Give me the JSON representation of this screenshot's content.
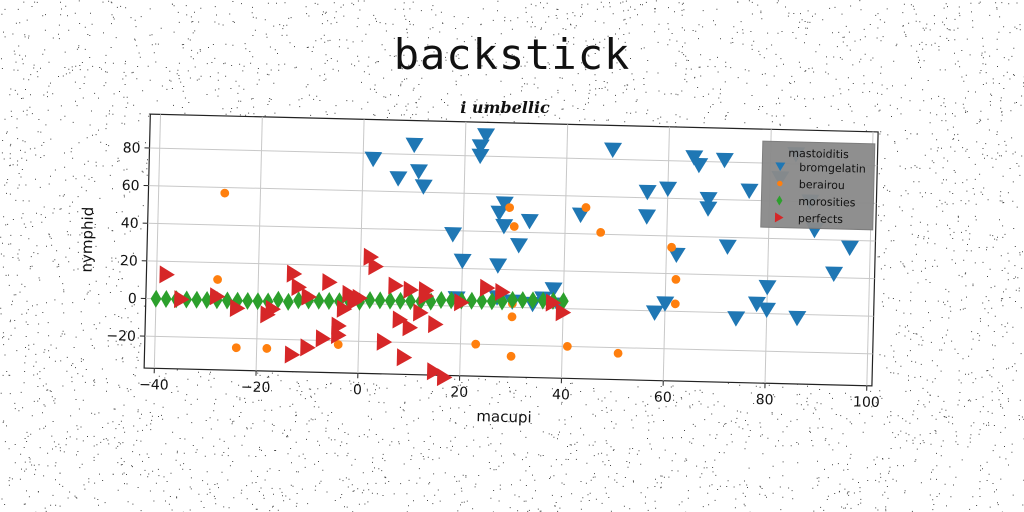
{
  "title": "backstick",
  "chart_data": {
    "type": "scatter",
    "subtitle": "i umbellic",
    "xlabel": "macupi",
    "ylabel": "nymphid",
    "xlim": [
      -42,
      101
    ],
    "ylim": [
      -37,
      98
    ],
    "xticks": [
      -40,
      -20,
      0,
      20,
      40,
      60,
      80,
      100
    ],
    "yticks": [
      -20,
      0,
      20,
      40,
      60,
      80
    ],
    "xtick_labels": [
      "−40",
      "−20",
      "0",
      "20",
      "40",
      "60",
      "80",
      "100"
    ],
    "ytick_labels": [
      "−20",
      "0",
      "20",
      "40",
      "60",
      "80"
    ],
    "grid": true,
    "legend": {
      "title": "mastoiditis",
      "position": "top-right"
    },
    "series": [
      {
        "name": "bromgelatin",
        "marker": "triangle-down",
        "color": "#1f77b4",
        "points": [
          [
            2,
            77
          ],
          [
            10,
            85
          ],
          [
            7,
            67
          ],
          [
            11,
            71
          ],
          [
            12,
            63
          ],
          [
            23,
            85
          ],
          [
            24,
            91
          ],
          [
            23,
            80
          ],
          [
            18,
            38
          ],
          [
            20,
            24
          ],
          [
            27,
            22
          ],
          [
            28,
            55
          ],
          [
            27,
            50
          ],
          [
            28,
            43
          ],
          [
            31,
            33
          ],
          [
            33,
            46
          ],
          [
            36,
            5
          ],
          [
            38,
            10
          ],
          [
            43,
            50
          ],
          [
            49,
            85
          ],
          [
            56,
            63
          ],
          [
            56,
            50
          ],
          [
            60,
            65
          ],
          [
            62,
            30
          ],
          [
            58,
            -1
          ],
          [
            65,
            82
          ],
          [
            66,
            78
          ],
          [
            68,
            60
          ],
          [
            68,
            55
          ],
          [
            71,
            81
          ],
          [
            72,
            35
          ],
          [
            76,
            65
          ],
          [
            74,
            -3
          ],
          [
            78,
            5
          ],
          [
            80,
            2
          ],
          [
            80,
            14
          ],
          [
            86,
            -2
          ],
          [
            85,
            85
          ],
          [
            88,
            60
          ],
          [
            89,
            45
          ],
          [
            93,
            22
          ],
          [
            96,
            36
          ],
          [
            19,
            4
          ],
          [
            27,
            5
          ],
          [
            30,
            3
          ],
          [
            34,
            2
          ],
          [
            39,
            2
          ],
          [
            60,
            4
          ],
          [
            82,
            72
          ]
        ]
      },
      {
        "name": "berairou",
        "marker": "circle",
        "color": "#ff7f0e",
        "points": [
          [
            -27,
            57
          ],
          [
            -28,
            11
          ],
          [
            -24,
            -25
          ],
          [
            -18,
            -25
          ],
          [
            -4,
            -22
          ],
          [
            23,
            -20
          ],
          [
            29,
            53
          ],
          [
            30,
            43
          ],
          [
            30,
            -5
          ],
          [
            30,
            -26
          ],
          [
            41,
            -20
          ],
          [
            44,
            54
          ],
          [
            47,
            41
          ],
          [
            51,
            -23
          ],
          [
            61,
            34
          ],
          [
            62,
            17
          ],
          [
            62,
            4
          ],
          [
            30,
            2
          ]
        ]
      },
      {
        "name": "morosities",
        "marker": "diamond",
        "color": "#2ca02c",
        "points": [
          [
            -40,
            0
          ],
          [
            -38,
            0
          ],
          [
            -36,
            0
          ],
          [
            -34,
            0
          ],
          [
            -32,
            0
          ],
          [
            -30,
            0
          ],
          [
            -28,
            0
          ],
          [
            -26,
            0
          ],
          [
            -24,
            0
          ],
          [
            -22,
            0
          ],
          [
            -20,
            0
          ],
          [
            -18,
            0
          ],
          [
            -16,
            1
          ],
          [
            -14,
            0
          ],
          [
            -12,
            1
          ],
          [
            -10,
            1
          ],
          [
            -8,
            1
          ],
          [
            -6,
            1
          ],
          [
            -4,
            1
          ],
          [
            -2,
            1
          ],
          [
            0,
            1
          ],
          [
            2,
            2
          ],
          [
            4,
            2
          ],
          [
            6,
            2
          ],
          [
            8,
            2
          ],
          [
            10,
            2
          ],
          [
            12,
            2
          ],
          [
            14,
            2
          ],
          [
            16,
            3
          ],
          [
            18,
            3
          ],
          [
            20,
            3
          ],
          [
            22,
            3
          ],
          [
            24,
            3
          ],
          [
            26,
            3
          ],
          [
            28,
            3
          ],
          [
            30,
            4
          ],
          [
            32,
            4
          ],
          [
            34,
            4
          ],
          [
            36,
            4
          ],
          [
            38,
            4
          ],
          [
            40,
            4
          ]
        ]
      },
      {
        "name": "perfects",
        "marker": "triangle-right",
        "color": "#d62728",
        "points": [
          [
            -38,
            13
          ],
          [
            -35,
            0
          ],
          [
            -28,
            2
          ],
          [
            -24,
            -4
          ],
          [
            -18,
            -7
          ],
          [
            -17,
            -4
          ],
          [
            -13,
            15
          ],
          [
            -12,
            8
          ],
          [
            -13,
            -28
          ],
          [
            -10,
            -24
          ],
          [
            -10,
            3
          ],
          [
            -7,
            -19
          ],
          [
            -6,
            11
          ],
          [
            -4,
            -12
          ],
          [
            -4,
            -17
          ],
          [
            -3,
            -3
          ],
          [
            -2,
            5
          ],
          [
            -1,
            1
          ],
          [
            0,
            3
          ],
          [
            2,
            25
          ],
          [
            3,
            20
          ],
          [
            5,
            -20
          ],
          [
            7,
            10
          ],
          [
            8,
            -8
          ],
          [
            10,
            -12
          ],
          [
            9,
            -28
          ],
          [
            10,
            8
          ],
          [
            12,
            -4
          ],
          [
            13,
            8
          ],
          [
            13,
            5
          ],
          [
            15,
            -10
          ],
          [
            15,
            -35
          ],
          [
            17,
            -38
          ],
          [
            20,
            2
          ],
          [
            25,
            10
          ],
          [
            28,
            8
          ],
          [
            38,
            3
          ],
          [
            40,
            -2
          ]
        ]
      }
    ]
  }
}
